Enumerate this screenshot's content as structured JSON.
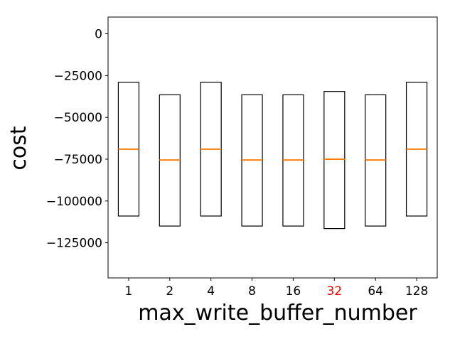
{
  "chart_data": {
    "type": "boxplot",
    "title": "",
    "xlabel": "max_write_buffer_number",
    "ylabel": "cost",
    "categories": [
      "1",
      "2",
      "4",
      "8",
      "16",
      "32",
      "64",
      "128"
    ],
    "highlighted_category": "32",
    "highlight_color": "#ff0000",
    "box_edge_color": "#000000",
    "median_color": "#ff7f0e",
    "ylim": [
      -146000,
      10000
    ],
    "yticks": [
      0,
      -25000,
      -50000,
      -75000,
      -100000,
      -125000
    ],
    "ytick_labels": [
      "0",
      "−25000",
      "−50000",
      "−75000",
      "−100000",
      "−125000"
    ],
    "grid": false,
    "boxes": [
      {
        "category": "1",
        "q1": -109000,
        "median": -69000,
        "q3": -29000
      },
      {
        "category": "2",
        "q1": -115000,
        "median": -75500,
        "q3": -36500
      },
      {
        "category": "4",
        "q1": -109000,
        "median": -69000,
        "q3": -29000
      },
      {
        "category": "8",
        "q1": -115000,
        "median": -75500,
        "q3": -36500
      },
      {
        "category": "16",
        "q1": -115000,
        "median": -75500,
        "q3": -36500
      },
      {
        "category": "32",
        "q1": -116500,
        "median": -75000,
        "q3": -34500
      },
      {
        "category": "64",
        "q1": -115000,
        "median": -75500,
        "q3": -36500
      },
      {
        "category": "128",
        "q1": -109000,
        "median": -69000,
        "q3": -29000
      }
    ]
  }
}
